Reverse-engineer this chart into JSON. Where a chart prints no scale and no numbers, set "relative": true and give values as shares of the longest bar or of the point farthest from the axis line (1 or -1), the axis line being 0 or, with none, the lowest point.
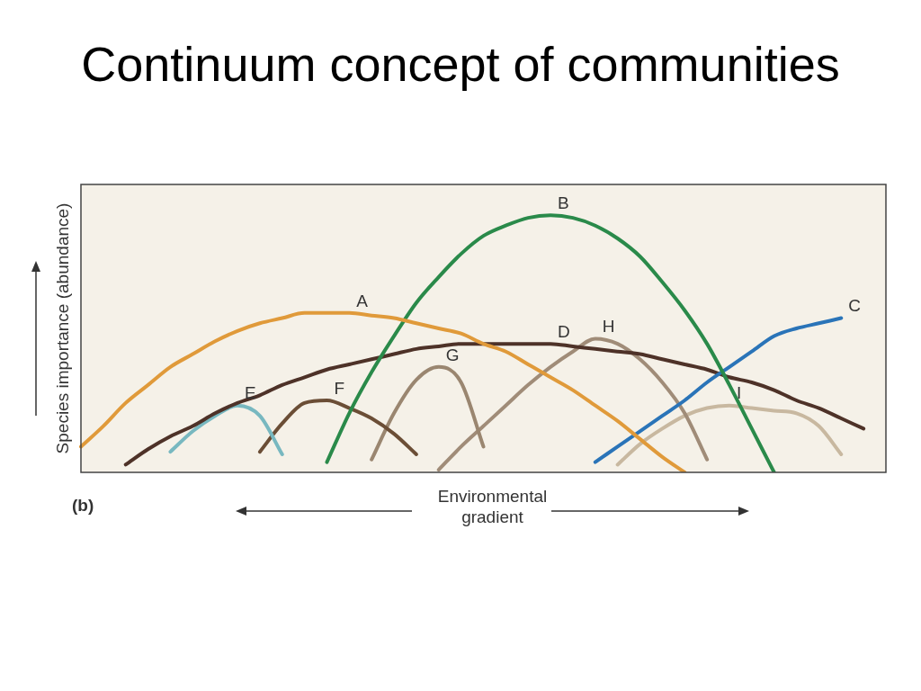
{
  "chart_data": {
    "type": "line",
    "title": "Continuum concept of communities",
    "xlabel": "Environmental gradient",
    "ylabel": "Species importance (abundance)",
    "relative": true,
    "marker": "none",
    "line_style": "solid",
    "legend": false,
    "annotations": [
      "(b)"
    ],
    "categories": [
      null,
      null,
      null,
      null,
      null,
      null,
      null,
      null,
      null,
      null,
      null,
      null,
      null,
      null,
      null,
      null,
      null,
      null,
      null,
      null,
      null,
      null,
      null,
      null,
      null,
      null,
      null,
      null,
      null,
      null,
      null,
      null,
      null,
      null,
      null,
      null,
      null
    ],
    "series": [
      {
        "name": "A",
        "color": "#e09a3a",
        "values": [
          0.1,
          0.18,
          0.27,
          0.34,
          0.41,
          0.46,
          0.51,
          0.55,
          0.58,
          0.6,
          0.62,
          0.62,
          0.62,
          0.61,
          0.6,
          0.58,
          0.56,
          0.54,
          0.5,
          0.47,
          0.42,
          0.37,
          0.32,
          0.26,
          0.2,
          0.13,
          0.06,
          0,
          null,
          null,
          null,
          null,
          null,
          null,
          null,
          null,
          null
        ]
      },
      {
        "name": "B",
        "color": "#2a8a4a",
        "values": [
          null,
          null,
          null,
          null,
          null,
          null,
          null,
          null,
          null,
          null,
          null,
          0.04,
          0.23,
          0.39,
          0.53,
          0.66,
          0.76,
          0.85,
          0.92,
          0.96,
          0.99,
          1,
          0.99,
          0.96,
          0.91,
          0.84,
          0.74,
          0.63,
          0.5,
          0.34,
          0.17,
          0,
          null,
          null,
          null,
          null,
          null
        ]
      },
      {
        "name": "C",
        "color": "#2a74b8",
        "values": [
          null,
          null,
          null,
          null,
          null,
          null,
          null,
          null,
          null,
          null,
          null,
          null,
          null,
          null,
          null,
          null,
          null,
          null,
          null,
          null,
          null,
          null,
          null,
          0.04,
          0.1,
          0.16,
          0.22,
          0.28,
          0.35,
          0.41,
          0.47,
          0.53,
          0.56,
          0.58,
          0.6,
          null,
          null
        ]
      },
      {
        "name": "D",
        "color": "#4e3228",
        "values": [
          null,
          null,
          0.03,
          0.09,
          0.14,
          0.18,
          0.23,
          0.27,
          0.3,
          0.34,
          0.37,
          0.4,
          0.42,
          0.44,
          0.46,
          0.48,
          0.49,
          0.5,
          0.5,
          0.5,
          0.5,
          0.5,
          0.49,
          0.48,
          0.47,
          0.46,
          0.44,
          0.42,
          0.4,
          0.37,
          0.35,
          0.32,
          0.28,
          0.25,
          0.21,
          0.17,
          null
        ]
      },
      {
        "name": "E",
        "color": "#78b8c0",
        "values": [
          null,
          null,
          null,
          null,
          0.08,
          0.16,
          0.22,
          0.26,
          0.22,
          0.07,
          null,
          null,
          null,
          null,
          null,
          null,
          null,
          null,
          null,
          null,
          null,
          null,
          null,
          null,
          null,
          null,
          null,
          null,
          null,
          null,
          null,
          null,
          null,
          null,
          null,
          null,
          null
        ]
      },
      {
        "name": "F",
        "color": "#6b4e36",
        "values": [
          null,
          null,
          null,
          null,
          null,
          null,
          null,
          null,
          0.08,
          0.19,
          0.27,
          0.28,
          0.25,
          0.21,
          0.15,
          0.07,
          null,
          null,
          null,
          null,
          null,
          null,
          null,
          null,
          null,
          null,
          null,
          null,
          null,
          null,
          null,
          null,
          null,
          null,
          null,
          null,
          null
        ]
      },
      {
        "name": "G",
        "color": "#9a8670",
        "values": [
          null,
          null,
          null,
          null,
          null,
          null,
          null,
          null,
          null,
          null,
          null,
          null,
          null,
          0.05,
          0.23,
          0.36,
          0.41,
          0.35,
          0.1,
          null,
          null,
          null,
          null,
          null,
          null,
          null,
          null,
          null,
          null,
          null,
          null,
          null,
          null,
          null,
          null,
          null,
          null
        ]
      },
      {
        "name": "H",
        "color": "#a08c78",
        "values": [
          null,
          null,
          null,
          null,
          null,
          null,
          null,
          null,
          null,
          null,
          null,
          null,
          null,
          null,
          null,
          null,
          0.01,
          0.1,
          0.18,
          0.26,
          0.34,
          0.41,
          0.47,
          0.52,
          0.5,
          0.44,
          0.35,
          0.23,
          0.05,
          null,
          null,
          null,
          null,
          null,
          null,
          null,
          null
        ]
      },
      {
        "name": "I",
        "color": "#c8b8a0",
        "values": [
          null,
          null,
          null,
          null,
          null,
          null,
          null,
          null,
          null,
          null,
          null,
          null,
          null,
          null,
          null,
          null,
          null,
          null,
          null,
          null,
          null,
          null,
          null,
          null,
          0.03,
          0.11,
          0.17,
          0.22,
          0.25,
          0.26,
          0.25,
          0.24,
          0.23,
          0.18,
          0.07,
          null,
          null
        ]
      }
    ]
  }
}
